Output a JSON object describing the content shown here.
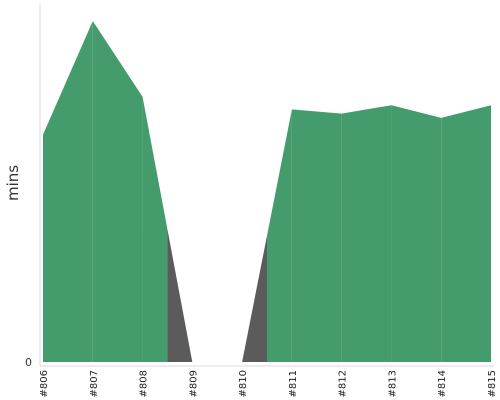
{
  "chart_data": {
    "type": "area",
    "categories": [
      "#806",
      "#807",
      "#808",
      "#809",
      "#810",
      "#811",
      "#812",
      "#813",
      "#814",
      "#815"
    ],
    "series": [
      {
        "role": "success",
        "values": [
          54,
          81,
          63,
          0,
          0,
          60,
          59,
          61,
          58,
          61
        ]
      }
    ],
    "failed_runs": [
      "#809",
      "#810"
    ],
    "ylabel": "mins",
    "y_ticks": [
      "0"
    ],
    "ylim": [
      0,
      85
    ],
    "grid": false,
    "legend": "none",
    "colors": {
      "success": "#449c6c",
      "failure": "#5b5b5b",
      "axis": "#d8d8d8"
    }
  }
}
